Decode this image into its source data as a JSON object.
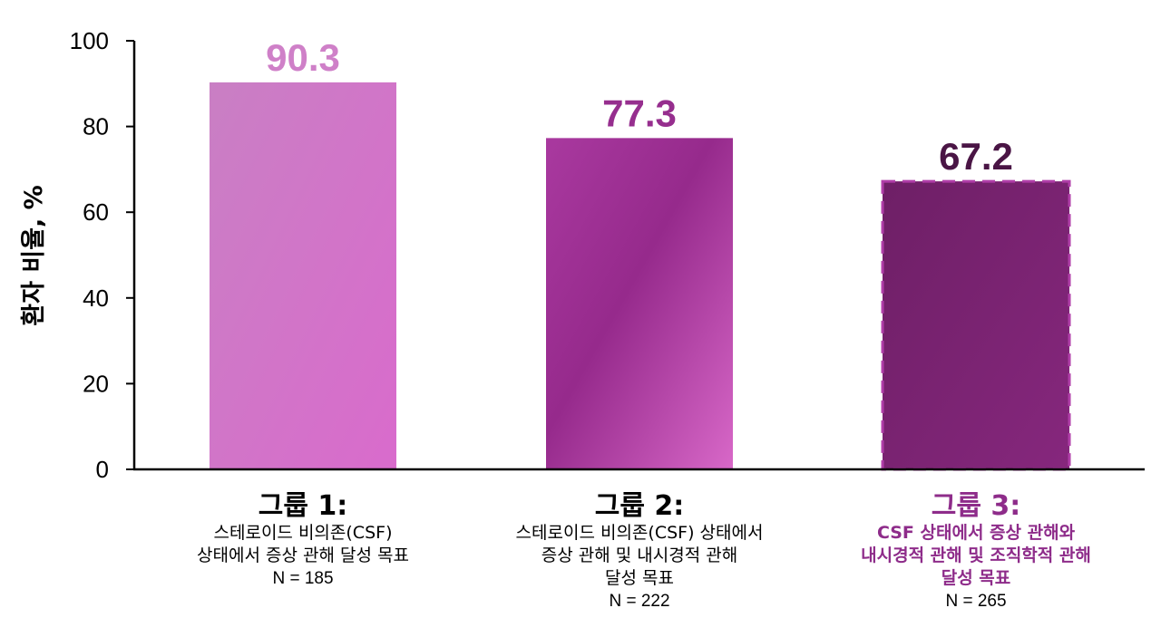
{
  "chart_data": {
    "type": "bar",
    "ylabel": "환자 비율, %",
    "ylim": [
      0,
      100
    ],
    "yticks": [
      0,
      20,
      40,
      60,
      80,
      100
    ],
    "grid": false,
    "categories": [
      "그룹 1:",
      "그룹 2:",
      "그룹 3:"
    ],
    "values": [
      90.3,
      77.3,
      67.2
    ],
    "value_labels": [
      "90.3",
      "77.3",
      "67.2"
    ],
    "descriptions": [
      [
        "스테로이드 비의존(CSF)",
        "상태에서 증상 관해 달성 목표"
      ],
      [
        "스테로이드 비의존(CSF) 상태에서",
        "증상 관해 및 내시경적 관해",
        "달성 목표"
      ],
      [
        "CSF 상태에서 증상 관해와",
        "내시경적 관해 및 조직학적 관해",
        "달성 목표"
      ]
    ],
    "n_labels": [
      "N = 185",
      "N = 222",
      "N = 265"
    ],
    "colors": {
      "bar1": "#d27ccc",
      "bar2": "#a23399",
      "bar3": "#7a2272",
      "bar3_border": "#b03ea8",
      "label1": "#cf80c8",
      "label2": "#962e8e",
      "label3": "#4a1545",
      "group3_text": "#8e2c8a"
    }
  }
}
